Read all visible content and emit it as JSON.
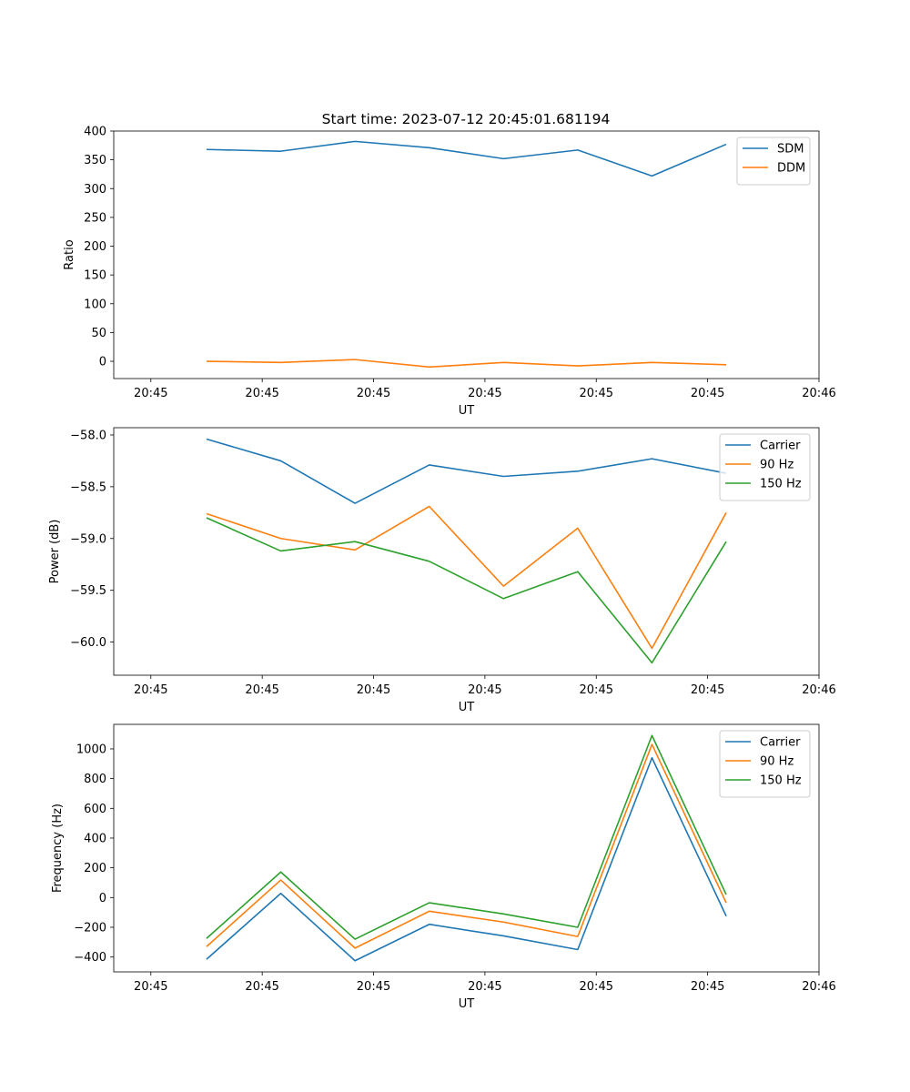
{
  "figure_title": "Start time: 2023-07-12 20:45:01.681194",
  "chart_data": [
    {
      "type": "line",
      "title": "Start time: 2023-07-12 20:45:01.681194",
      "xlabel": "UT",
      "ylabel": "Ratio",
      "xlim": [
        0,
        9.5
      ],
      "ylim": [
        -30,
        400
      ],
      "x_ticks": [
        0.5,
        2,
        3.5,
        5,
        6.5,
        8,
        9.5
      ],
      "x_tick_labels": [
        "20:45",
        "20:45",
        "20:45",
        "20:45",
        "20:45",
        "20:45",
        "20:46"
      ],
      "y_ticks": [
        0,
        50,
        100,
        150,
        200,
        250,
        300,
        350,
        400
      ],
      "y_tick_labels": [
        "0",
        "50",
        "100",
        "150",
        "200",
        "250",
        "300",
        "350",
        "400"
      ],
      "legend_position": "top-right",
      "x": [
        1.25,
        2.25,
        3.25,
        4.25,
        5.25,
        6.25,
        7.25,
        8.25
      ],
      "series": [
        {
          "name": "SDM",
          "color": "#1f77b4",
          "values": [
            368,
            365,
            382,
            371,
            352,
            367,
            322,
            377
          ]
        },
        {
          "name": "DDM",
          "color": "#ff7f0e",
          "values": [
            0,
            -2,
            3,
            -10,
            -2,
            -8,
            -2,
            -6
          ]
        }
      ]
    },
    {
      "type": "line",
      "title": "",
      "xlabel": "UT",
      "ylabel": "Power (dB)",
      "xlim": [
        0,
        9.5
      ],
      "ylim": [
        -60.32,
        -57.93
      ],
      "x_ticks": [
        0.5,
        2,
        3.5,
        5,
        6.5,
        8,
        9.5
      ],
      "x_tick_labels": [
        "20:45",
        "20:45",
        "20:45",
        "20:45",
        "20:45",
        "20:45",
        "20:46"
      ],
      "y_ticks": [
        -58.0,
        -58.5,
        -59.0,
        -59.5,
        -60.0
      ],
      "y_tick_labels": [
        "−58.0",
        "−58.5",
        "−59.0",
        "−59.5",
        "−60.0"
      ],
      "legend_position": "top-right",
      "x": [
        1.25,
        2.25,
        3.25,
        4.25,
        5.25,
        6.25,
        7.25,
        8.25
      ],
      "series": [
        {
          "name": "Carrier",
          "color": "#1f77b4",
          "values": [
            -58.04,
            -58.25,
            -58.66,
            -58.29,
            -58.4,
            -58.35,
            -58.23,
            -58.37
          ]
        },
        {
          "name": "90 Hz",
          "color": "#ff7f0e",
          "values": [
            -58.76,
            -59.0,
            -59.11,
            -58.69,
            -59.46,
            -58.9,
            -60.06,
            -58.75
          ]
        },
        {
          "name": "150 Hz",
          "color": "#2ca02c",
          "values": [
            -58.8,
            -59.12,
            -59.03,
            -59.22,
            -59.58,
            -59.32,
            -60.2,
            -59.03
          ]
        }
      ]
    },
    {
      "type": "line",
      "title": "",
      "xlabel": "UT",
      "ylabel": "Frequency (Hz)",
      "xlim": [
        0,
        9.5
      ],
      "ylim": [
        -500,
        1165
      ],
      "x_ticks": [
        0.5,
        2,
        3.5,
        5,
        6.5,
        8,
        9.5
      ],
      "x_tick_labels": [
        "20:45",
        "20:45",
        "20:45",
        "20:45",
        "20:45",
        "20:45",
        "20:46"
      ],
      "y_ticks": [
        -400,
        -200,
        0,
        200,
        400,
        600,
        800,
        1000
      ],
      "y_tick_labels": [
        "−400",
        "−200",
        "0",
        "200",
        "400",
        "600",
        "800",
        "1000"
      ],
      "legend_position": "top-right",
      "x": [
        1.25,
        2.25,
        3.25,
        4.25,
        5.25,
        6.25,
        7.25,
        8.25
      ],
      "series": [
        {
          "name": "Carrier",
          "color": "#1f77b4",
          "values": [
            -415,
            28,
            -425,
            -180,
            -258,
            -350,
            940,
            -125
          ]
        },
        {
          "name": "90 Hz",
          "color": "#ff7f0e",
          "values": [
            -330,
            118,
            -340,
            -92,
            -165,
            -262,
            1030,
            -35
          ]
        },
        {
          "name": "150 Hz",
          "color": "#2ca02c",
          "values": [
            -275,
            172,
            -280,
            -35,
            -110,
            -200,
            1090,
            20
          ]
        }
      ]
    }
  ]
}
